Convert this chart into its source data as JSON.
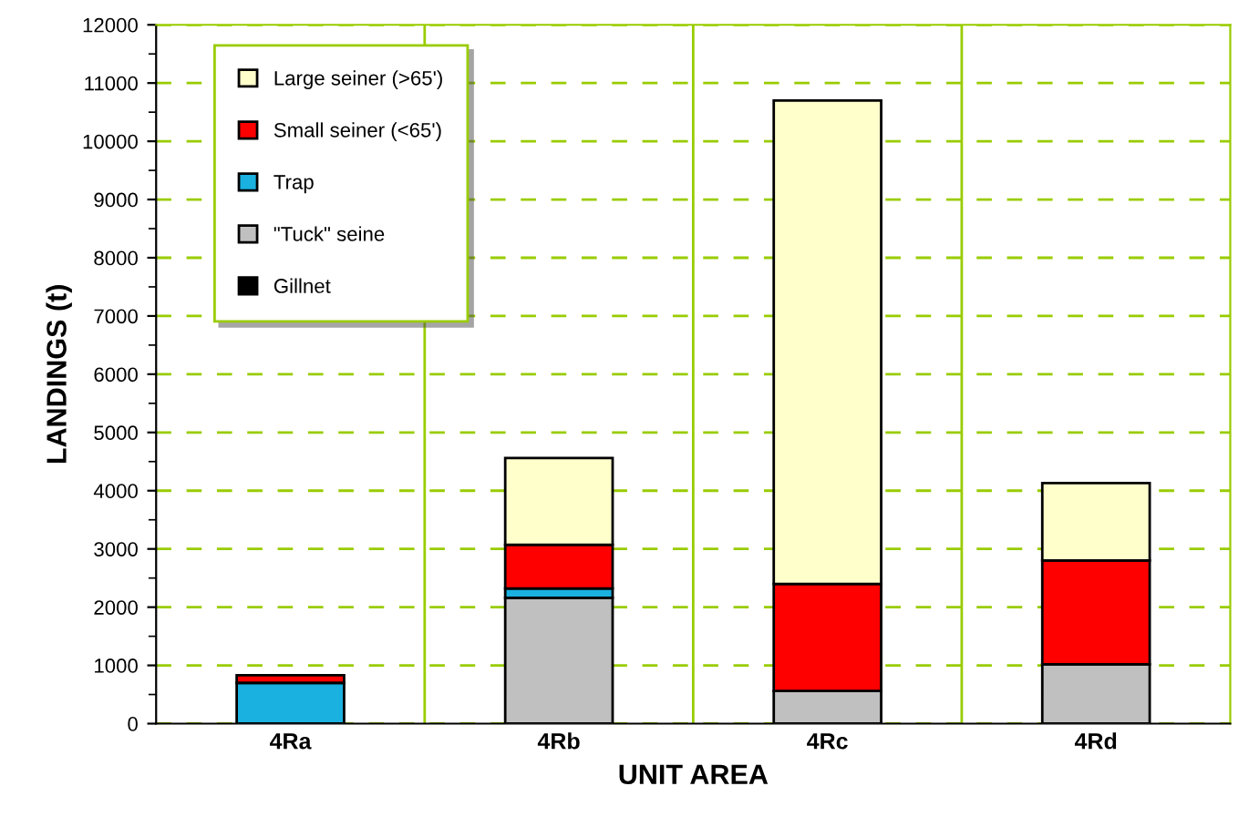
{
  "chart_data": {
    "type": "bar",
    "stacked": true,
    "xlabel": "UNIT AREA",
    "ylabel": "LANDINGS (t)",
    "categories": [
      "4Ra",
      "4Rb",
      "4Rc",
      "4Rd"
    ],
    "series": [
      {
        "name": "Gillnet",
        "color": "#000000",
        "values": [
          0,
          0,
          0,
          0
        ]
      },
      {
        "name": "\"Tuck\" seine",
        "color": "#c0c0c0",
        "values": [
          0,
          2160,
          560,
          1020
        ]
      },
      {
        "name": "Trap",
        "color": "#1ab0e0",
        "values": [
          700,
          160,
          0,
          0
        ]
      },
      {
        "name": "Small seiner (<65')",
        "color": "#ff0000",
        "values": [
          130,
          750,
          1840,
          1780
        ]
      },
      {
        "name": "Large seiner (>65')",
        "color": "#ffffcc",
        "values": [
          0,
          1490,
          8300,
          1330
        ]
      }
    ],
    "ylim": [
      0,
      12000
    ],
    "yticks": [
      0,
      1000,
      2000,
      3000,
      4000,
      5000,
      6000,
      7000,
      8000,
      9000,
      10000,
      11000,
      12000
    ],
    "grid": true,
    "legend": "top left"
  }
}
